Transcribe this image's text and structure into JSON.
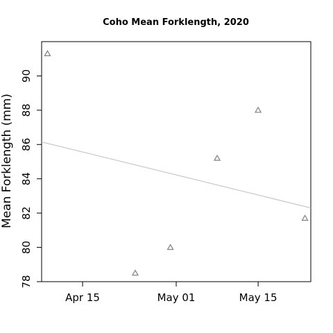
{
  "chart_data": {
    "type": "scatter",
    "title": "Coho Mean Forklength, 2020",
    "xlabel": "",
    "ylabel": "Mean Forklength (mm)",
    "x_type": "date",
    "xlim": [
      "2020-04-08",
      "2020-05-24"
    ],
    "ylim": [
      78,
      92
    ],
    "x_ticks": [
      {
        "value": "2020-04-15",
        "label": "Apr 15"
      },
      {
        "value": "2020-05-01",
        "label": "May 01"
      },
      {
        "value": "2020-05-15",
        "label": "May 15"
      }
    ],
    "y_ticks": [
      78,
      80,
      82,
      84,
      86,
      88,
      90
    ],
    "series": [
      {
        "marker": "open-triangle",
        "points": [
          {
            "x": "2020-04-09",
            "y": 91.3
          },
          {
            "x": "2020-04-24",
            "y": 78.5
          },
          {
            "x": "2020-04-30",
            "y": 80.0
          },
          {
            "x": "2020-05-08",
            "y": 85.2
          },
          {
            "x": "2020-05-15",
            "y": 88.0
          },
          {
            "x": "2020-05-23",
            "y": 81.7
          }
        ]
      }
    ],
    "trendline": {
      "points": [
        {
          "x": "2020-04-08",
          "y": 86.15
        },
        {
          "x": "2020-05-24",
          "y": 82.3
        }
      ]
    },
    "grid": false,
    "legend": "none",
    "colors": {
      "points": "#888888",
      "trendline": "#bdbdbd",
      "axes": "#000000"
    }
  }
}
